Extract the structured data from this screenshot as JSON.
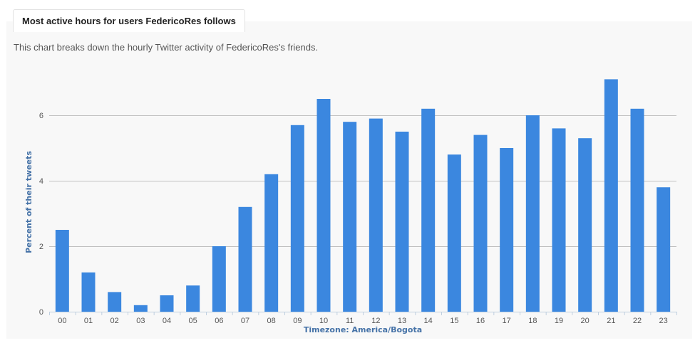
{
  "header": {
    "title": "Most active hours for users FedericoRes follows",
    "subtitle": "This chart breaks down the hourly Twitter activity of FedericoRes's friends."
  },
  "chart_data": {
    "type": "bar",
    "categories": [
      "00",
      "01",
      "02",
      "03",
      "04",
      "05",
      "06",
      "07",
      "08",
      "09",
      "10",
      "11",
      "12",
      "13",
      "14",
      "15",
      "16",
      "17",
      "18",
      "19",
      "20",
      "21",
      "22",
      "23"
    ],
    "values": [
      2.5,
      1.2,
      0.6,
      0.2,
      0.5,
      0.8,
      2.0,
      3.2,
      4.2,
      5.7,
      6.5,
      5.8,
      5.9,
      5.5,
      6.2,
      4.8,
      5.4,
      5.0,
      6.0,
      5.6,
      5.3,
      7.1,
      6.2,
      3.8
    ],
    "xlabel": "Timezone: America/Bogota",
    "ylabel": "Percent of their tweets",
    "ylim": [
      0,
      8
    ],
    "yticks": [
      0,
      2,
      4,
      6
    ],
    "grid": true,
    "bar_color": "#3b87df",
    "grid_color": "#c0c0c0"
  }
}
